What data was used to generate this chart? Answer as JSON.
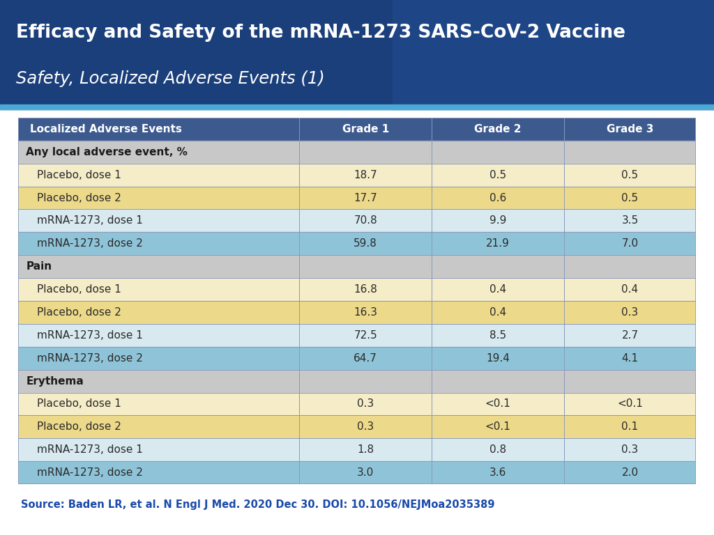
{
  "title_line1": "Efficacy and Safety of the mRNA-1273 SARS-CoV-2 Vaccine",
  "title_line2": "Safety, Localized Adverse Events (1)",
  "col_headers": [
    "Localized Adverse Events",
    "Grade 1",
    "Grade 2",
    "Grade 3"
  ],
  "rows": [
    {
      "type": "section",
      "label": "Any local adverse event, %",
      "values": [
        "",
        "",
        ""
      ]
    },
    {
      "type": "data",
      "color": "tan_light",
      "label": "Placebo, dose 1",
      "values": [
        "18.7",
        "0.5",
        "0.5"
      ]
    },
    {
      "type": "data",
      "color": "tan",
      "label": "Placebo, dose 2",
      "values": [
        "17.7",
        "0.6",
        "0.5"
      ]
    },
    {
      "type": "data",
      "color": "blue_light",
      "label": "mRNA-1273, dose 1",
      "values": [
        "70.8",
        "9.9",
        "3.5"
      ]
    },
    {
      "type": "data",
      "color": "blue",
      "label": "mRNA-1273, dose 2",
      "values": [
        "59.8",
        "21.9",
        "7.0"
      ]
    },
    {
      "type": "section",
      "label": "Pain",
      "values": [
        "",
        "",
        ""
      ]
    },
    {
      "type": "data",
      "color": "tan_light",
      "label": "Placebo, dose 1",
      "values": [
        "16.8",
        "0.4",
        "0.4"
      ]
    },
    {
      "type": "data",
      "color": "tan",
      "label": "Placebo, dose 2",
      "values": [
        "16.3",
        "0.4",
        "0.3"
      ]
    },
    {
      "type": "data",
      "color": "blue_light",
      "label": "mRNA-1273, dose 1",
      "values": [
        "72.5",
        "8.5",
        "2.7"
      ]
    },
    {
      "type": "data",
      "color": "blue",
      "label": "mRNA-1273, dose 2",
      "values": [
        "64.7",
        "19.4",
        "4.1"
      ]
    },
    {
      "type": "section",
      "label": "Erythema",
      "values": [
        "",
        "",
        ""
      ]
    },
    {
      "type": "data",
      "color": "tan_light",
      "label": "Placebo, dose 1",
      "values": [
        "0.3",
        "<0.1",
        "<0.1"
      ]
    },
    {
      "type": "data",
      "color": "tan",
      "label": "Placebo, dose 2",
      "values": [
        "0.3",
        "<0.1",
        "0.1"
      ]
    },
    {
      "type": "data",
      "color": "blue_light",
      "label": "mRNA-1273, dose 1",
      "values": [
        "1.8",
        "0.8",
        "0.3"
      ]
    },
    {
      "type": "data",
      "color": "blue",
      "label": "mRNA-1273, dose 2",
      "values": [
        "3.0",
        "3.6",
        "2.0"
      ]
    }
  ],
  "source_text": "Source: Baden LR, et al. N Engl J Med. 2020 Dec 30. DOI: 10.1056/NEJMoa2035389",
  "color_map": {
    "tan_light": "#F5ECC8",
    "tan": "#EDD98A",
    "blue_light": "#D8EAF0",
    "blue": "#8FC4D8",
    "section": "#C8C8C8",
    "header": "#3D5A8E"
  },
  "title_bg": "#1B3F7A",
  "title_text_color": "#FFFFFF",
  "header_text_color": "#FFFFFF",
  "section_text_color": "#1A1A1A",
  "data_text_color": "#2A2A2A",
  "source_color": "#1A4AAA",
  "border_color": "#8898BB",
  "line_color": "#5BAAD8"
}
